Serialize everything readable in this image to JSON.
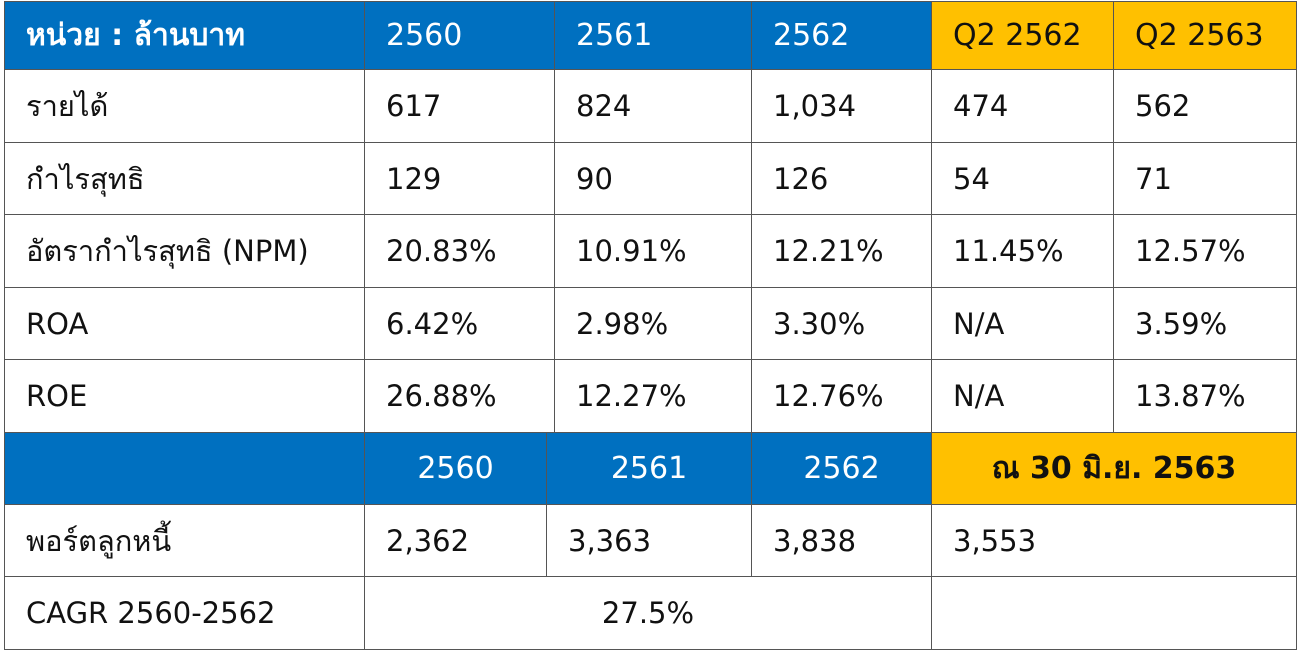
{
  "table1": {
    "headers": [
      "หน่วย : ล้านบาท",
      "2560",
      "2561",
      "2562",
      "Q2 2562",
      "Q2 2563"
    ],
    "rows": [
      [
        "รายได้",
        "617",
        "824",
        "1,034",
        "474",
        "562"
      ],
      [
        "กำไรสุทธิ",
        "129",
        "90",
        "126",
        "54",
        "71"
      ],
      [
        "อัตรากำไรสุทธิ (NPM)",
        "20.83%",
        "10.91%",
        "12.21%",
        "11.45%",
        "12.57%"
      ],
      [
        "ROA",
        "6.42%",
        "2.98%",
        "3.30%",
        "N/A",
        "3.59%"
      ],
      [
        "ROE",
        "26.88%",
        "12.27%",
        "12.76%",
        "N/A",
        "13.87%"
      ]
    ]
  },
  "table2": {
    "headers": [
      "",
      "2560",
      "2561",
      "2562",
      "ณ 30 มิ.ย. 2563"
    ],
    "row": [
      "พอร์ตลูกหนี้",
      "2,362",
      "3,363",
      "3,838",
      "3,553"
    ],
    "cagr": {
      "label": "CAGR 2560-2562",
      "value": "27.5%",
      "extra": ""
    }
  },
  "colors": {
    "header_blue": "#0070c0",
    "header_gold": "#ffc000"
  }
}
